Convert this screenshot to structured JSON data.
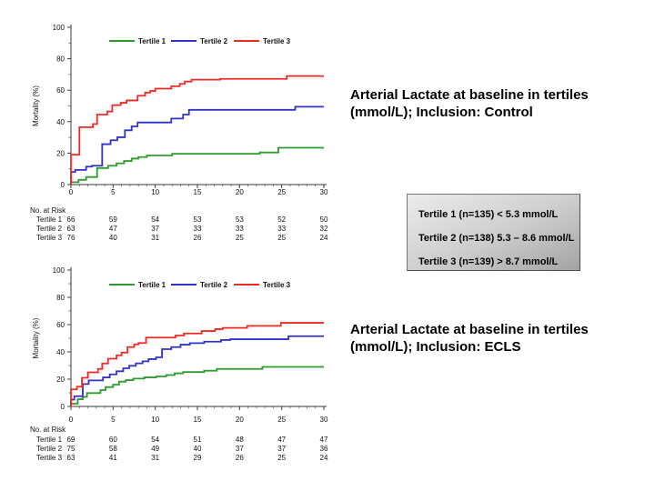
{
  "headings": {
    "control": {
      "line1": "Arterial Lactate at baseline in tertiles",
      "line2": "(mmol/L); Inclusion: Control"
    },
    "ecls": {
      "line1": "Arterial Lactate at baseline in tertiles",
      "line2": "(mmol/L); Inclusion: ECLS"
    }
  },
  "tertile_box": {
    "lines": [
      "Tertile 1 (n=135) < 5.3 mmol/L",
      "Tertile 2 (n=138) 5.3 – 8.6 mmol/L",
      "Tertile 3 (n=139) > 8.7 mmol/L"
    ]
  },
  "colors": {
    "tertile1": "#2E9B2E",
    "tertile2": "#3032C8",
    "tertile3": "#EF2B24",
    "axis": "#3a3a3a",
    "text": "#111111"
  },
  "chart_data": [
    {
      "id": "control",
      "type": "line",
      "step": true,
      "title": "",
      "xlabel": "",
      "ylabel": "Mortality (%)",
      "xlim": [
        0,
        30
      ],
      "ylim": [
        0,
        100
      ],
      "xticks": [
        0,
        5,
        10,
        15,
        20,
        25,
        30
      ],
      "yticks": [
        0,
        20,
        40,
        60,
        80,
        100
      ],
      "x_minor_step": 1,
      "y_minor_step": 10,
      "grid": false,
      "legend_position": "top-center",
      "series": [
        {
          "name": "Tertile 1",
          "color": "#2E9B2E",
          "end_x": 30,
          "steps": [
            [
              0,
              1.5
            ],
            [
              0.9,
              3
            ],
            [
              1.8,
              4.8
            ],
            [
              3.1,
              10.5
            ],
            [
              4.4,
              12
            ],
            [
              5.4,
              13.5
            ],
            [
              6.3,
              15
            ],
            [
              7.2,
              16.5
            ],
            [
              8,
              17.5
            ],
            [
              9,
              18.5
            ],
            [
              12,
              19.6
            ],
            [
              22.4,
              20.4
            ],
            [
              24.6,
              23.4
            ]
          ]
        },
        {
          "name": "Tertile 2",
          "color": "#3032C8",
          "end_x": 30,
          "steps": [
            [
              0,
              8
            ],
            [
              0.5,
              9.3
            ],
            [
              1.8,
              11.4
            ],
            [
              2.5,
              12
            ],
            [
              3.7,
              25.7
            ],
            [
              4.7,
              28.2
            ],
            [
              5.5,
              30.1
            ],
            [
              6.4,
              34.5
            ],
            [
              7.2,
              37
            ],
            [
              7.9,
              39.5
            ],
            [
              11.9,
              42
            ],
            [
              13.3,
              44.5
            ],
            [
              14,
              47.5
            ],
            [
              26.6,
              49.5
            ]
          ]
        },
        {
          "name": "Tertile 3",
          "color": "#EF2B24",
          "end_x": 30,
          "steps": [
            [
              0,
              19
            ],
            [
              1,
              36.5
            ],
            [
              2.6,
              38.5
            ],
            [
              3.1,
              44.5
            ],
            [
              4.3,
              46.5
            ],
            [
              4.9,
              50.5
            ],
            [
              5.9,
              52
            ],
            [
              6.6,
              53.5
            ],
            [
              7.9,
              56.5
            ],
            [
              8.8,
              58.5
            ],
            [
              9.4,
              59.5
            ],
            [
              10,
              61
            ],
            [
              11.9,
              62.5
            ],
            [
              12.9,
              64
            ],
            [
              13.5,
              65.5
            ],
            [
              14.3,
              66.7
            ],
            [
              17.7,
              67.2
            ],
            [
              25.6,
              69
            ]
          ]
        }
      ],
      "at_risk": {
        "title": "No. at Risk",
        "columns_at": [
          0,
          5,
          10,
          15,
          20,
          25,
          30
        ],
        "rows": [
          {
            "label": "Tertile 1",
            "values": [
              66,
              59,
              54,
              53,
              53,
              52,
              50
            ]
          },
          {
            "label": "Tertile 2",
            "values": [
              63,
              47,
              37,
              33,
              33,
              33,
              32
            ]
          },
          {
            "label": "Tertile 3",
            "values": [
              76,
              40,
              31,
              26,
              25,
              25,
              24
            ]
          }
        ]
      }
    },
    {
      "id": "ecls",
      "type": "line",
      "step": true,
      "title": "",
      "xlabel": "",
      "ylabel": "Mortality (%)",
      "xlim": [
        0,
        30
      ],
      "ylim": [
        0,
        100
      ],
      "xticks": [
        0,
        5,
        10,
        15,
        20,
        25,
        30
      ],
      "yticks": [
        0,
        20,
        40,
        60,
        80,
        100
      ],
      "x_minor_step": 1,
      "y_minor_step": 10,
      "grid": false,
      "legend_position": "top-center",
      "series": [
        {
          "name": "Tertile 1",
          "color": "#2E9B2E",
          "end_x": 30,
          "steps": [
            [
              0,
              2
            ],
            [
              0.8,
              5.3
            ],
            [
              1.4,
              7
            ],
            [
              1.9,
              9.8
            ],
            [
              3.5,
              12
            ],
            [
              4.1,
              14.2
            ],
            [
              5,
              16
            ],
            [
              5.7,
              18.2
            ],
            [
              6.5,
              19.3
            ],
            [
              7.4,
              20.4
            ],
            [
              8.7,
              21.3
            ],
            [
              10.1,
              22
            ],
            [
              11.3,
              23
            ],
            [
              12.3,
              24.3
            ],
            [
              13.3,
              25.2
            ],
            [
              15.8,
              26.2
            ],
            [
              17.3,
              27.5
            ],
            [
              22.7,
              29
            ]
          ]
        },
        {
          "name": "Tertile 2",
          "color": "#3032C8",
          "end_x": 30,
          "steps": [
            [
              0,
              5
            ],
            [
              0.4,
              7.5
            ],
            [
              1.4,
              16.4
            ],
            [
              2.1,
              19.1
            ],
            [
              3.8,
              21.3
            ],
            [
              4.6,
              23.5
            ],
            [
              5.4,
              25.8
            ],
            [
              6.2,
              28
            ],
            [
              6.9,
              29.8
            ],
            [
              7.7,
              31.6
            ],
            [
              8.5,
              33.1
            ],
            [
              9.2,
              34.7
            ],
            [
              10.1,
              36
            ],
            [
              10.8,
              42
            ],
            [
              11.9,
              43.5
            ],
            [
              13,
              45.3
            ],
            [
              14.1,
              46.4
            ],
            [
              15.8,
              47.5
            ],
            [
              17.8,
              48.7
            ],
            [
              18.9,
              49.3
            ],
            [
              25.8,
              51.5
            ]
          ]
        },
        {
          "name": "Tertile 3",
          "color": "#EF2B24",
          "end_x": 30,
          "steps": [
            [
              0,
              12.5
            ],
            [
              0.7,
              14.5
            ],
            [
              1.3,
              21
            ],
            [
              2,
              25
            ],
            [
              3.2,
              27.5
            ],
            [
              3.7,
              31.5
            ],
            [
              4.4,
              35
            ],
            [
              5.4,
              37.5
            ],
            [
              6,
              39.5
            ],
            [
              6.7,
              43.5
            ],
            [
              7.5,
              45.5
            ],
            [
              8,
              46.5
            ],
            [
              8.9,
              50.5
            ],
            [
              12.4,
              52
            ],
            [
              13.4,
              53.5
            ],
            [
              15.5,
              55.3
            ],
            [
              17.1,
              56.7
            ],
            [
              18,
              57.6
            ],
            [
              20.9,
              59.1
            ],
            [
              24.9,
              61.3
            ]
          ]
        }
      ],
      "at_risk": {
        "title": "No. at Risk",
        "columns_at": [
          0,
          5,
          10,
          15,
          20,
          25,
          30
        ],
        "rows": [
          {
            "label": "Tertile 1",
            "values": [
              69,
              60,
              54,
              51,
              48,
              47,
              47
            ]
          },
          {
            "label": "Tertile 2",
            "values": [
              75,
              58,
              49,
              40,
              37,
              37,
              36
            ]
          },
          {
            "label": "Tertile 3",
            "values": [
              63,
              41,
              31,
              29,
              26,
              25,
              24
            ]
          }
        ]
      }
    }
  ]
}
